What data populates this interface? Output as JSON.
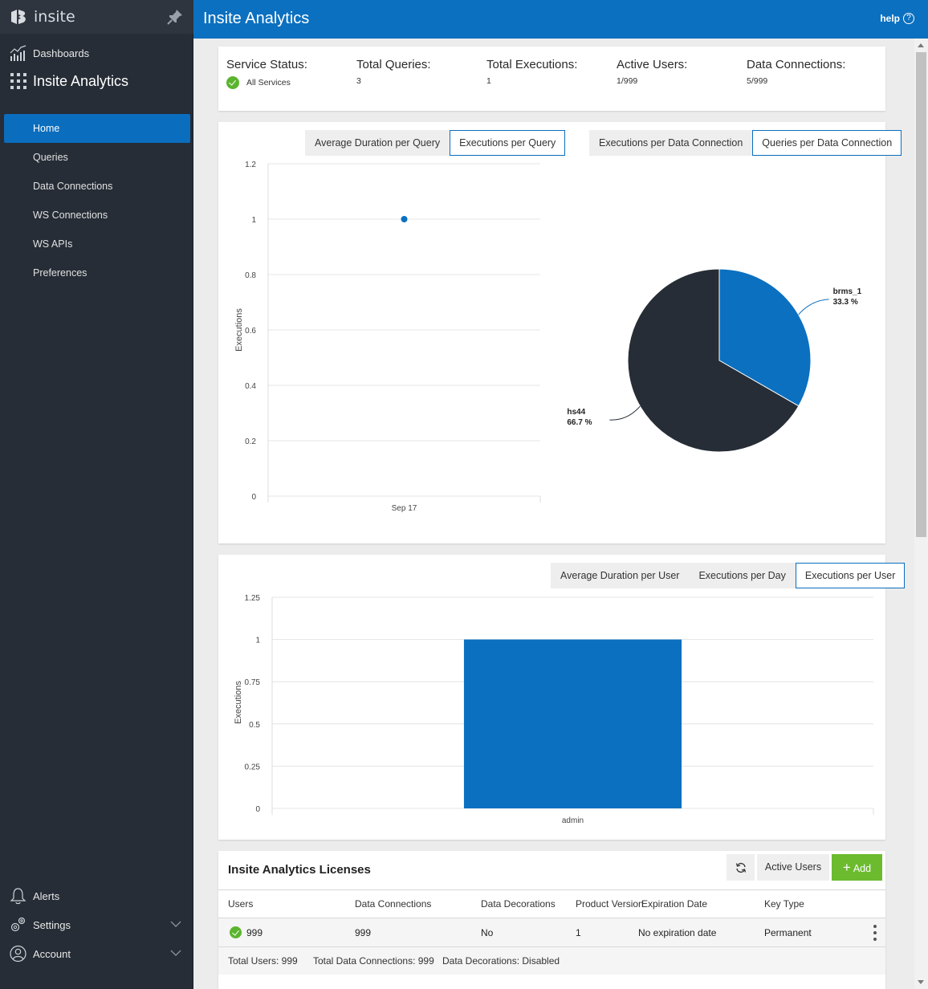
{
  "brand": {
    "name": "insite"
  },
  "sidebar": {
    "dashboards_label": "Dashboards",
    "app_label": "Insite Analytics",
    "items": [
      {
        "label": "Home",
        "active": true
      },
      {
        "label": "Queries"
      },
      {
        "label": "Data Connections"
      },
      {
        "label": "WS Connections"
      },
      {
        "label": "WS APIs"
      },
      {
        "label": "Preferences"
      }
    ],
    "bottom": {
      "alerts": "Alerts",
      "settings": "Settings",
      "account": "Account"
    }
  },
  "header": {
    "title": "Insite Analytics",
    "help": "help",
    "help_icon_glyph": "?"
  },
  "stats": [
    {
      "label": "Service Status:",
      "value": "All Services"
    },
    {
      "label": "Total Queries:",
      "value": "3"
    },
    {
      "label": "Total Executions:",
      "value": "1"
    },
    {
      "label": "Active Users:",
      "value": "1/999"
    },
    {
      "label": "Data Connections:",
      "value": "5/999"
    }
  ],
  "query_tabs": [
    "Average Duration per Query",
    "Executions per Query"
  ],
  "connection_tabs": [
    "Executions per Data Connection",
    "Queries per Data Connection"
  ],
  "user_tabs": [
    "Average Duration per User",
    "Executions per Day",
    "Executions per User"
  ],
  "colors": {
    "primary": "#0b70c0",
    "dark": "#262d36",
    "success": "#6cbb2f"
  },
  "chart_data": [
    {
      "type": "scatter",
      "title": "Executions per Query",
      "xlabel": "",
      "ylabel": "Executions",
      "x": [
        "Sep 17"
      ],
      "y": [
        1
      ],
      "ylim": [
        0,
        1.2
      ],
      "yticks": [
        "0",
        "0.2",
        "0.4",
        "0.6",
        "0.8",
        "1",
        "1.2"
      ],
      "grid": true
    },
    {
      "type": "pie",
      "title": "Queries per Data Connection",
      "slices": [
        {
          "name": "brms_1",
          "value": 33.3,
          "label": "33.3 %",
          "color": "#0b70c0"
        },
        {
          "name": "hs44",
          "value": 66.7,
          "label": "66.7 %",
          "color": "#262d36"
        }
      ]
    },
    {
      "type": "bar",
      "title": "Executions per User",
      "xlabel": "",
      "ylabel": "Executions",
      "categories": [
        "admin"
      ],
      "values": [
        1
      ],
      "ylim": [
        0,
        1.25
      ],
      "yticks": [
        "0",
        "0.25",
        "0.5",
        "0.75",
        "1",
        "1.25"
      ],
      "grid": true
    }
  ],
  "licenses": {
    "title": "Insite Analytics Licenses",
    "active_users_btn": "Active Users",
    "add_btn": "Add",
    "columns": [
      "Users",
      "Data Connections",
      "Data Decorations",
      "Product Version",
      "Expiration Date",
      "Key Type"
    ],
    "rows": [
      {
        "users": "999",
        "data_connections": "999",
        "data_decorations": "No",
        "product_version": "1",
        "expiration": "No expiration date",
        "key_type": "Permanent"
      }
    ],
    "footer": {
      "total_users": "Total Users: 999",
      "total_connections": "Total Data Connections: 999",
      "decorations": "Data Decorations: Disabled"
    }
  }
}
